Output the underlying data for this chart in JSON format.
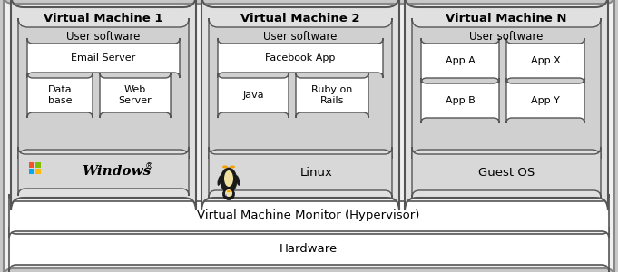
{
  "bg_color": "#c8c8c8",
  "outer_fill": "#e8e8e8",
  "mid_fill": "#d8d8d8",
  "inner_fill": "#ffffff",
  "edge_color": "#555555",
  "title_vmm": "Virtual Machine Monitor (Hypervisor)",
  "title_hw": "Hardware",
  "vm1_title": "Virtual Machine 1",
  "vm2_title": "Virtual Machine 2",
  "vmn_title": "Virtual Machine N",
  "us_label": "User software",
  "vm1_apps": [
    "Email Server",
    "Data\nbase",
    "Web\nServer"
  ],
  "vm2_apps": [
    "Facebook App",
    "Java",
    "Ruby on\nRails"
  ],
  "vmn_apps": [
    "App A",
    "App X",
    "App B",
    "App Y"
  ],
  "vm1_os": "Windows",
  "vm2_os": "Linux",
  "vmn_os": "Guest OS",
  "fs_title": 9.5,
  "fs_label": 8.5,
  "fs_small": 8.0,
  "fs_os": 11.0
}
